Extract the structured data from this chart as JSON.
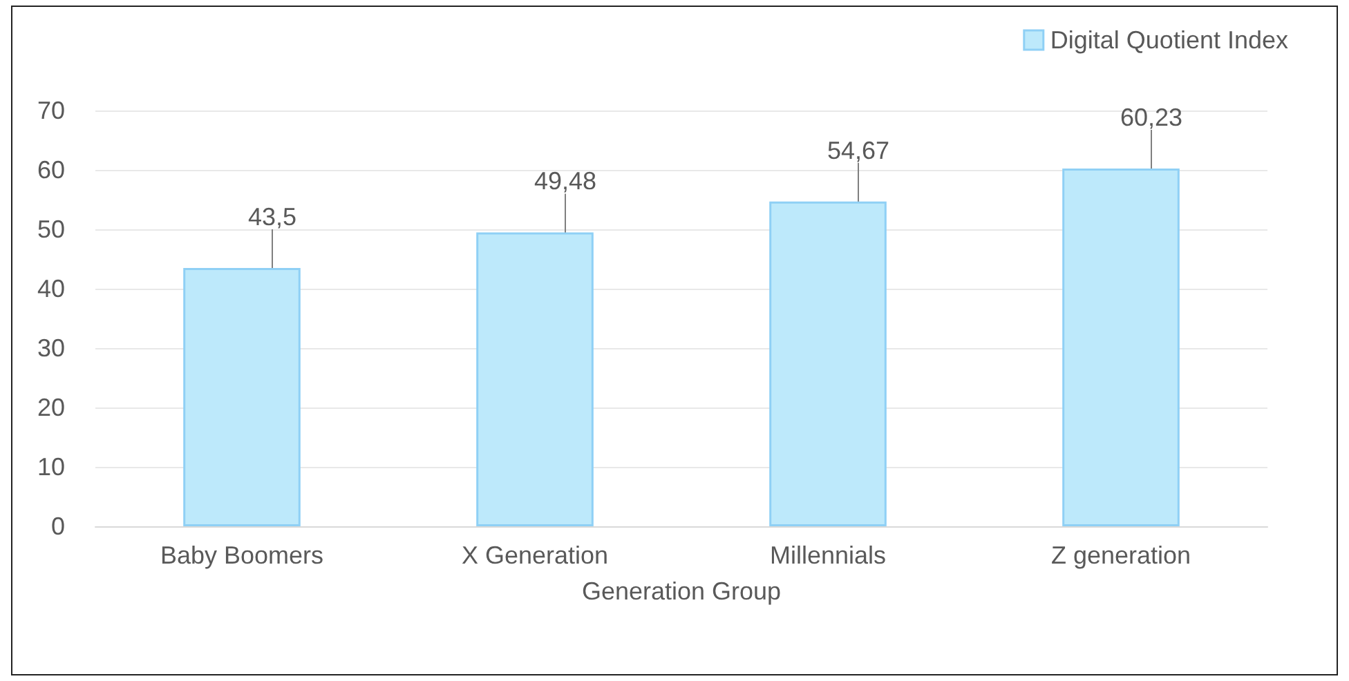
{
  "chart_data": {
    "type": "bar",
    "xlabel": "Generation Group",
    "categories": [
      "Baby Boomers",
      "X Generation",
      "Millennials",
      "Z generation"
    ],
    "series": [
      {
        "name": "Digital Quotient Index",
        "color": "#bde9fb",
        "values": [
          43.5,
          49.48,
          54.67,
          60.23
        ],
        "value_labels": [
          "43,5",
          "49,48",
          "54,67",
          "60,23"
        ]
      }
    ],
    "ylim": [
      0,
      70
    ],
    "yticks": [
      0,
      10,
      20,
      30,
      40,
      50,
      60,
      70
    ],
    "grid": "y",
    "legend": "top right"
  }
}
